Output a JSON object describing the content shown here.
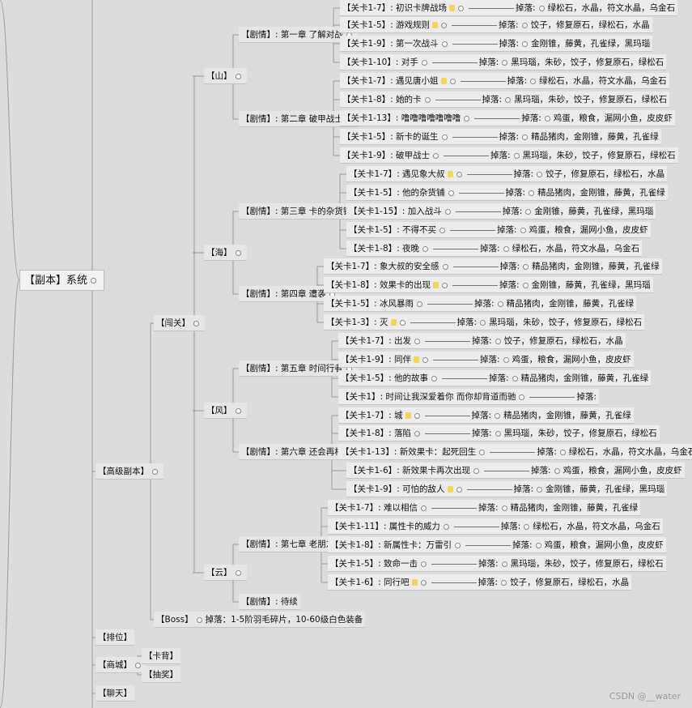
{
  "root": {
    "label": "【副本】系统"
  },
  "sections": {
    "gaoji": "【高级副本】",
    "paiwei": "【排位】",
    "shangcheng": "【商城】",
    "liaotian": "【聊天】",
    "kabei": "【卡背】",
    "choujiang": "【抽奖】",
    "chuangguan": "【闯关】"
  },
  "boss": {
    "label": "【Boss】",
    "drop": "掉落：1-5阶羽毛碎片，10-60级白色装备"
  },
  "regions": [
    {
      "label": "【山】"
    },
    {
      "label": "【海】"
    },
    {
      "label": "【风】"
    },
    {
      "label": "【云】"
    }
  ],
  "chapters": [
    {
      "label": "【剧情】: 第一章 了解对战"
    },
    {
      "label": "【剧情】: 第二章 破甲战士"
    },
    {
      "label": "【剧情】: 第三章 卡的杂货铺"
    },
    {
      "label": "【剧情】: 第四章 遭袭"
    },
    {
      "label": "【剧情】: 第五章 时间行者"
    },
    {
      "label": "【剧情】: 第六章 还会再相遇"
    },
    {
      "label": "【剧情】: 第七章 老朋友"
    },
    {
      "label": "【剧情】: 待续"
    }
  ],
  "drop_word": "掉落:",
  "levels": [
    {
      "name": "【关卡1-7】: 初识卡牌战场",
      "items": "绿松石，水晶，符文水晶，乌金石",
      "star": true
    },
    {
      "name": "【关卡1-5】: 游戏规则",
      "items": "饺子，修复原石，绿松石，水晶",
      "star": true
    },
    {
      "name": "【关卡1-9】: 第一次战斗",
      "items": "金刚锥，藤黄，孔雀绿，黑玛瑙",
      "star": false
    },
    {
      "name": "【关卡1-10】: 对手",
      "items": "黑玛瑙，朱砂，饺子，修复原石，绿松石",
      "star": false
    },
    {
      "name": "【关卡1-7】: 遇见唐小姐",
      "items": "绿松石，水晶，符文水晶，乌金石",
      "star": true
    },
    {
      "name": "【关卡1-8】: 她的卡",
      "items": "黑玛瑙，朱砂，饺子，修复原石，绿松石",
      "star": false
    },
    {
      "name": "【关卡1-13】: 噜噜噜噜噜噜噜",
      "items": "鸡蛋，粮食，漏网小鱼，皮皮虾",
      "star": false
    },
    {
      "name": "【关卡1-5】: 新卡的诞生",
      "items": "精品猪肉，金刚锥，藤黄，孔雀绿",
      "star": false
    },
    {
      "name": "【关卡1-9】: 破甲战士",
      "items": "黑玛瑙，朱砂，饺子，修复原石，绿松石",
      "star": false
    },
    {
      "name": "【关卡1-7】: 遇见象大叔",
      "items": "饺子，修复原石，绿松石，水晶",
      "star": true
    },
    {
      "name": "【关卡1-5】: 他的杂货铺",
      "items": "精品猪肉，金刚锥，藤黄，孔雀绿",
      "star": false
    },
    {
      "name": "【关卡1-15】: 加入战斗",
      "items": "金刚锥，藤黄，孔雀绿，黑玛瑙",
      "star": false
    },
    {
      "name": "【关卡1-5】: 不得不买",
      "items": "鸡蛋，粮食，漏网小鱼，皮皮虾",
      "star": false
    },
    {
      "name": "【关卡1-8】: 夜晚",
      "items": "绿松石，水晶，符文水晶，乌金石",
      "star": false
    },
    {
      "name": "【关卡1-7】: 象大叔的安全感",
      "items": "精品猪肉，金刚锥，藤黄，孔雀绿",
      "star": false
    },
    {
      "name": "【关卡1-8】: 效果卡的出现",
      "items": "金刚锥，藤黄，孔雀绿，黑玛瑙",
      "star": true
    },
    {
      "name": "【关卡1-5】: 冰风暴雨",
      "items": "精品猪肉，金刚锥，藤黄，孔雀绿",
      "star": false
    },
    {
      "name": "【关卡1-3】: 灭",
      "items": "黑玛瑙，朱砂，饺子，修复原石，绿松石",
      "star": true
    },
    {
      "name": "【关卡1-7】: 出发",
      "items": "饺子，修复原石，绿松石，水晶",
      "star": false
    },
    {
      "name": "【关卡1-9】: 同伴",
      "items": "鸡蛋，粮食，漏网小鱼，皮皮虾",
      "star": true
    },
    {
      "name": "【关卡1-5】: 他的故事",
      "items": "精品猪肉，金刚锥，藤黄，孔雀绿",
      "star": false
    },
    {
      "name": "【关卡1】: 时间让我深爱着你 而你却背道而驰",
      "items": "",
      "star": false
    },
    {
      "name": "【关卡1-7】: 城",
      "items": "精品猪肉，金刚锥，藤黄，孔雀绿",
      "star": true
    },
    {
      "name": "【关卡1-8】: 落陷",
      "items": "黑玛瑙，朱砂，饺子，修复原石，绿松石",
      "star": false
    },
    {
      "name": "【关卡1-13】: 新效果卡：起死回生",
      "items": "绿松石，水晶，符文水晶，乌金石",
      "star": false
    },
    {
      "name": "【关卡1-6】: 新效果卡再次出现",
      "items": "鸡蛋，粮食，漏网小鱼，皮皮虾",
      "star": false
    },
    {
      "name": "【关卡1-9】: 可怕的敌人",
      "items": "金刚锥，藤黄，孔雀绿，黑玛瑙",
      "star": true
    },
    {
      "name": "【关卡1-7】: 难以相信",
      "items": "精品猪肉，金刚锥，藤黄，孔雀绿",
      "star": false
    },
    {
      "name": "【关卡1-11】: 属性卡的威力",
      "items": "绿松石，水晶，符文水晶，乌金石",
      "star": false
    },
    {
      "name": "【关卡1-8】: 新属性卡：万雷引",
      "items": "鸡蛋，粮食，漏网小鱼，皮皮虾",
      "star": false
    },
    {
      "name": "【关卡1-5】: 致命一击",
      "items": "黑玛瑙，朱砂，饺子，修复原石，绿松石",
      "star": false
    },
    {
      "name": "【关卡1-6】: 同行吧",
      "items": "饺子，修复原石，绿松石，水晶",
      "star": true
    }
  ],
  "watermark": "CSDN @__water"
}
